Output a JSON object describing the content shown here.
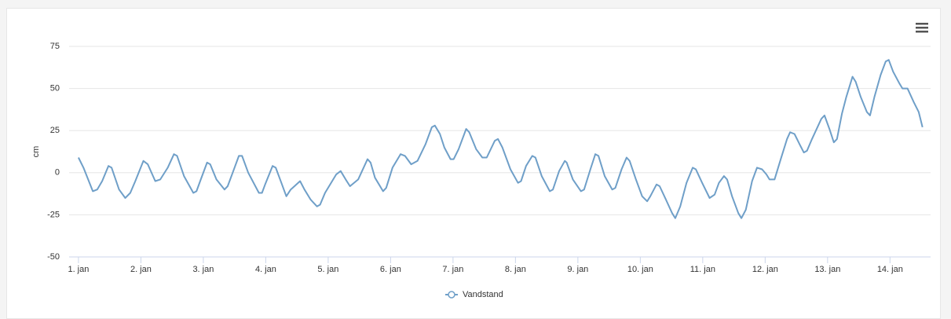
{
  "chart_data": {
    "type": "line",
    "y_label": "cm",
    "x": [
      1.0,
      1.08,
      1.23,
      1.3,
      1.38,
      1.48,
      1.53,
      1.65,
      1.75,
      1.83,
      1.91,
      2.04,
      2.11,
      2.23,
      2.31,
      2.43,
      2.53,
      2.58,
      2.69,
      2.84,
      2.89,
      2.96,
      3.06,
      3.11,
      3.21,
      3.34,
      3.39,
      3.47,
      3.57,
      3.62,
      3.72,
      3.89,
      3.94,
      3.99,
      4.11,
      4.16,
      4.25,
      4.33,
      4.4,
      4.43,
      4.55,
      4.62,
      4.72,
      4.82,
      4.87,
      4.95,
      5.13,
      5.2,
      5.28,
      5.35,
      5.48,
      5.63,
      5.68,
      5.75,
      5.88,
      5.93,
      6.03,
      6.16,
      6.23,
      6.33,
      6.43,
      6.56,
      6.66,
      6.71,
      6.79,
      6.86,
      6.96,
      7.01,
      7.09,
      7.21,
      7.26,
      7.37,
      7.47,
      7.54,
      7.67,
      7.72,
      7.79,
      7.92,
      8.04,
      8.09,
      8.17,
      8.27,
      8.32,
      8.42,
      8.55,
      8.6,
      8.7,
      8.79,
      8.82,
      8.92,
      9.05,
      9.1,
      9.2,
      9.28,
      9.33,
      9.43,
      9.55,
      9.6,
      9.7,
      9.78,
      9.83,
      9.93,
      10.03,
      10.11,
      10.16,
      10.26,
      10.31,
      10.41,
      10.51,
      10.56,
      10.64,
      10.74,
      10.84,
      10.89,
      10.99,
      11.11,
      11.19,
      11.26,
      11.34,
      11.39,
      11.47,
      11.57,
      11.62,
      11.69,
      11.79,
      11.87,
      11.95,
      12.02,
      12.07,
      12.15,
      12.25,
      12.35,
      12.4,
      12.47,
      12.55,
      12.62,
      12.67,
      12.75,
      12.9,
      12.95,
      13.03,
      13.1,
      13.15,
      13.23,
      13.3,
      13.4,
      13.45,
      13.53,
      13.63,
      13.68,
      13.75,
      13.85,
      13.93,
      13.98,
      14.05,
      14.15,
      14.2,
      14.28,
      14.38,
      14.46,
      14.52
    ],
    "series": [
      {
        "name": "Vandstand",
        "color": "#6f9fc8",
        "values": [
          9,
          3,
          -11,
          -10,
          -5,
          4,
          3,
          -10,
          -15,
          -12,
          -5,
          7,
          5,
          -5,
          -4,
          3,
          11,
          10,
          -2,
          -12,
          -11,
          -4,
          6,
          5,
          -4,
          -10,
          -8,
          0,
          10,
          10,
          0,
          -12,
          -12,
          -7,
          4,
          3,
          -6,
          -14,
          -10,
          -9,
          -5,
          -10,
          -16,
          -20,
          -19,
          -12,
          -1,
          1,
          -4,
          -8,
          -4,
          8,
          6,
          -3,
          -11,
          -9,
          3,
          11,
          10,
          5,
          7,
          17,
          27,
          28,
          23,
          15,
          8,
          8,
          14,
          26,
          24,
          14,
          9,
          9,
          19,
          20,
          15,
          2,
          -6,
          -5,
          4,
          10,
          9,
          -2,
          -11,
          -10,
          1,
          7,
          6,
          -4,
          -11,
          -10,
          2,
          11,
          10,
          -2,
          -10,
          -9,
          2,
          9,
          7,
          -4,
          -14,
          -17,
          -14,
          -7,
          -8,
          -16,
          -24,
          -27,
          -20,
          -6,
          3,
          2,
          -6,
          -15,
          -13,
          -6,
          -2,
          -4,
          -14,
          -24,
          -27,
          -22,
          -5,
          3,
          2,
          -1,
          -4,
          -4,
          8,
          20,
          24,
          23,
          17,
          12,
          13,
          20,
          32,
          34,
          26,
          18,
          20,
          35,
          45,
          57,
          54,
          45,
          36,
          34,
          45,
          58,
          66,
          67,
          60,
          53,
          50,
          50,
          42,
          36,
          27
        ]
      }
    ],
    "xlim": [
      0.85,
      14.65
    ],
    "xticks": [
      {
        "value": 1,
        "label": "1. jan"
      },
      {
        "value": 2,
        "label": "2. jan"
      },
      {
        "value": 3,
        "label": "3. jan"
      },
      {
        "value": 4,
        "label": "4. jan"
      },
      {
        "value": 5,
        "label": "5. jan"
      },
      {
        "value": 6,
        "label": "6. jan"
      },
      {
        "value": 7,
        "label": "7. jan"
      },
      {
        "value": 8,
        "label": "8. jan"
      },
      {
        "value": 9,
        "label": "9. jan"
      },
      {
        "value": 10,
        "label": "10. jan"
      },
      {
        "value": 11,
        "label": "11. jan"
      },
      {
        "value": 12,
        "label": "12. jan"
      },
      {
        "value": 13,
        "label": "13. jan"
      },
      {
        "value": 14,
        "label": "14. jan"
      }
    ],
    "ylim": [
      -50,
      75
    ],
    "yticks": [
      -50,
      -25,
      0,
      25,
      50,
      75
    ],
    "grid": true,
    "legend": "bottom"
  }
}
